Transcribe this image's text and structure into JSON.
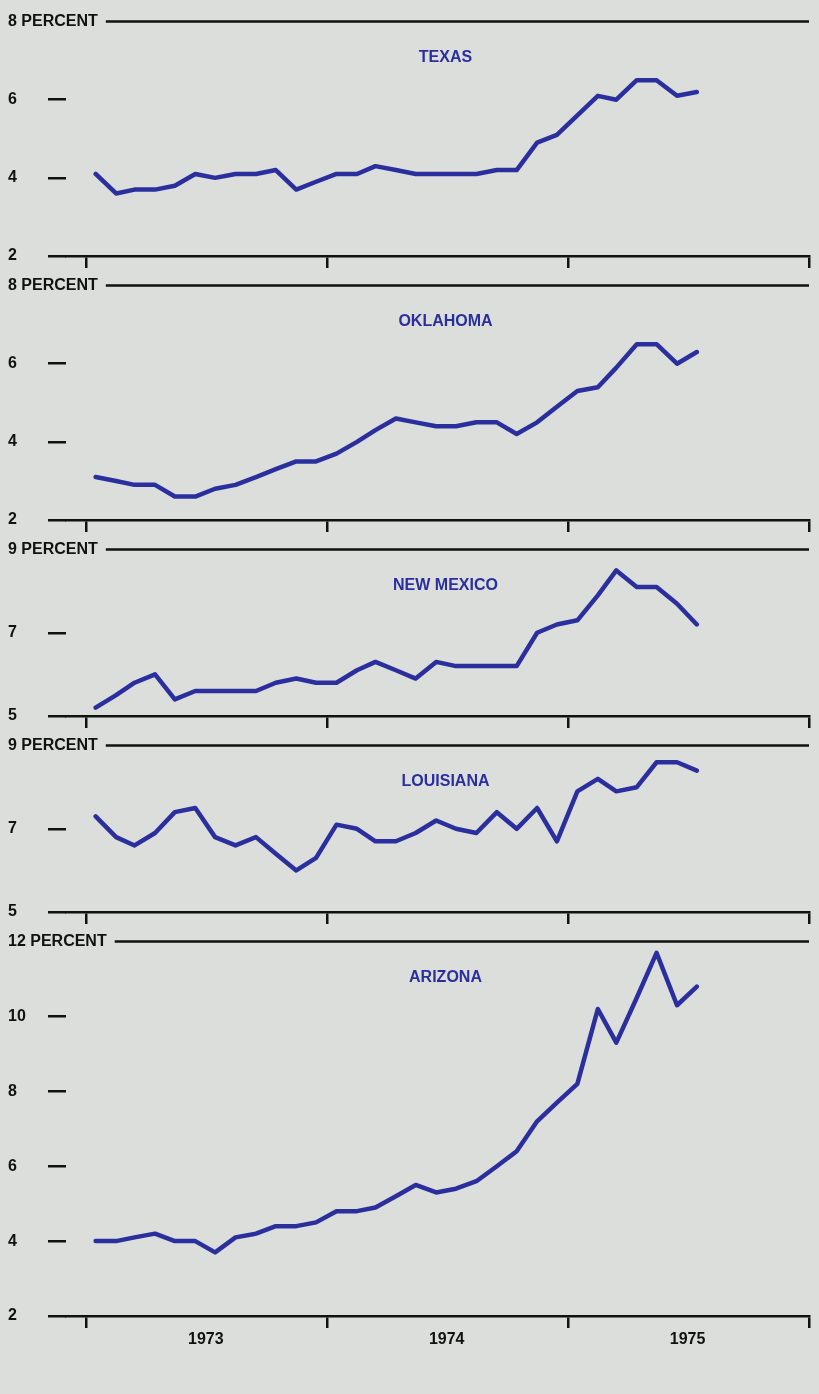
{
  "chart_data": [
    {
      "type": "line",
      "title": "TEXAS",
      "marker": "none",
      "tick_labels": "y",
      "x": [
        "1973-01-15",
        "1973-02-15",
        "1973-03-15",
        "1973-04-15",
        "1973-05-15",
        "1973-06-15",
        "1973-07-15",
        "1973-08-15",
        "1973-09-15",
        "1973-10-15",
        "1973-11-15",
        "1973-12-15",
        "1974-01-15",
        "1974-02-15",
        "1974-03-15",
        "1974-04-15",
        "1974-05-15",
        "1974-06-15",
        "1974-07-15",
        "1974-08-15",
        "1974-09-15",
        "1974-10-15",
        "1974-11-15",
        "1974-12-15",
        "1975-01-15",
        "1975-02-15",
        "1975-03-15",
        "1975-04-15",
        "1975-05-15",
        "1975-06-15",
        "1975-07-15"
      ],
      "series": [
        {
          "color": "#2b2f9e",
          "values": [
            4.1,
            3.6,
            3.7,
            3.7,
            3.8,
            4.1,
            4.0,
            4.1,
            4.1,
            4.2,
            3.7,
            3.9,
            4.1,
            4.1,
            4.3,
            4.2,
            4.1,
            4.1,
            4.1,
            4.1,
            4.2,
            4.2,
            4.9,
            5.1,
            5.6,
            6.1,
            6.0,
            6.5,
            6.5,
            6.1,
            6.2
          ]
        }
      ],
      "xlim": [
        "1972-12",
        "1976-01"
      ],
      "xticks": [
        {
          "value": "1973",
          "label": null
        },
        {
          "value": "1974",
          "label": null
        },
        {
          "value": "1975",
          "label": null
        },
        {
          "value": "1976",
          "label": null
        }
      ],
      "ylim": [
        2,
        8
      ],
      "yticks": [
        2,
        4,
        6,
        {
          "value": 8,
          "label": "8 PERCENT"
        }
      ]
    },
    {
      "type": "line",
      "title": "OKLAHOMA",
      "marker": "none",
      "tick_labels": "y",
      "x": [
        "1973-01-15",
        "1973-02-15",
        "1973-03-15",
        "1973-04-15",
        "1973-05-15",
        "1973-06-15",
        "1973-07-15",
        "1973-08-15",
        "1973-09-15",
        "1973-10-15",
        "1973-11-15",
        "1973-12-15",
        "1974-01-15",
        "1974-02-15",
        "1974-03-15",
        "1974-04-15",
        "1974-05-15",
        "1974-06-15",
        "1974-07-15",
        "1974-08-15",
        "1974-09-15",
        "1974-10-15",
        "1974-11-15",
        "1974-12-15",
        "1975-01-15",
        "1975-02-15",
        "1975-03-15",
        "1975-04-15",
        "1975-05-15",
        "1975-06-15",
        "1975-07-15"
      ],
      "series": [
        {
          "color": "#2b2f9e",
          "values": [
            3.1,
            3.0,
            2.9,
            2.9,
            2.6,
            2.6,
            2.8,
            2.9,
            3.1,
            3.3,
            3.5,
            3.5,
            3.7,
            4.0,
            4.3,
            4.6,
            4.5,
            4.4,
            4.4,
            4.5,
            4.5,
            4.2,
            4.5,
            4.9,
            5.3,
            5.4,
            5.9,
            6.5,
            6.5,
            6.0,
            6.3
          ]
        }
      ],
      "xlim": [
        "1972-12",
        "1976-01"
      ],
      "xticks": [
        {
          "value": "1973",
          "label": null
        },
        {
          "value": "1974",
          "label": null
        },
        {
          "value": "1975",
          "label": null
        },
        {
          "value": "1976",
          "label": null
        }
      ],
      "ylim": [
        2,
        8
      ],
      "yticks": [
        2,
        4,
        6,
        {
          "value": 8,
          "label": "8 PERCENT"
        }
      ]
    },
    {
      "type": "line",
      "title": "NEW MEXICO",
      "marker": "none",
      "tick_labels": "y",
      "x": [
        "1973-01-15",
        "1973-02-15",
        "1973-03-15",
        "1973-04-15",
        "1973-05-15",
        "1973-06-15",
        "1973-07-15",
        "1973-08-15",
        "1973-09-15",
        "1973-10-15",
        "1973-11-15",
        "1973-12-15",
        "1974-01-15",
        "1974-02-15",
        "1974-03-15",
        "1974-04-15",
        "1974-05-15",
        "1974-06-15",
        "1974-07-15",
        "1974-08-15",
        "1974-09-15",
        "1974-10-15",
        "1974-11-15",
        "1974-12-15",
        "1975-01-15",
        "1975-02-15",
        "1975-03-15",
        "1975-04-15",
        "1975-05-15",
        "1975-06-15",
        "1975-07-15"
      ],
      "series": [
        {
          "color": "#2b2f9e",
          "values": [
            5.2,
            5.5,
            5.8,
            6.0,
            5.4,
            5.6,
            5.6,
            5.6,
            5.6,
            5.8,
            5.9,
            5.8,
            5.8,
            6.1,
            6.3,
            6.1,
            5.9,
            6.3,
            6.2,
            6.2,
            6.2,
            6.2,
            7.0,
            7.2,
            7.3,
            7.9,
            8.5,
            8.1,
            8.1,
            7.7,
            7.2
          ]
        }
      ],
      "xlim": [
        "1972-12",
        "1976-01"
      ],
      "xticks": [
        {
          "value": "1973",
          "label": null
        },
        {
          "value": "1974",
          "label": null
        },
        {
          "value": "1975",
          "label": null
        },
        {
          "value": "1976",
          "label": null
        }
      ],
      "ylim": [
        5,
        9
      ],
      "yticks": [
        5,
        7,
        {
          "value": 9,
          "label": "9 PERCENT"
        }
      ]
    },
    {
      "type": "line",
      "title": "LOUISIANA",
      "marker": "none",
      "tick_labels": "y",
      "x": [
        "1973-01-15",
        "1973-02-15",
        "1973-03-15",
        "1973-04-15",
        "1973-05-15",
        "1973-06-15",
        "1973-07-15",
        "1973-08-15",
        "1973-09-15",
        "1973-10-15",
        "1973-11-15",
        "1973-12-15",
        "1974-01-15",
        "1974-02-15",
        "1974-03-15",
        "1974-04-15",
        "1974-05-15",
        "1974-06-15",
        "1974-07-15",
        "1974-08-15",
        "1974-09-15",
        "1974-10-15",
        "1974-11-15",
        "1974-12-15",
        "1975-01-15",
        "1975-02-15",
        "1975-03-15",
        "1975-04-15",
        "1975-05-15",
        "1975-06-15",
        "1975-07-15"
      ],
      "series": [
        {
          "color": "#2b2f9e",
          "values": [
            7.3,
            6.8,
            6.6,
            6.9,
            7.4,
            7.5,
            6.8,
            6.6,
            6.8,
            6.4,
            6.0,
            6.3,
            7.1,
            7.0,
            6.7,
            6.7,
            6.9,
            7.2,
            7.0,
            6.9,
            7.4,
            7.0,
            7.5,
            6.7,
            7.9,
            8.2,
            7.9,
            8.0,
            8.6,
            8.6,
            8.4
          ]
        }
      ],
      "xlim": [
        "1972-12",
        "1976-01"
      ],
      "xticks": [
        {
          "value": "1973",
          "label": null
        },
        {
          "value": "1974",
          "label": null
        },
        {
          "value": "1975",
          "label": null
        },
        {
          "value": "1976",
          "label": null
        }
      ],
      "ylim": [
        5,
        9
      ],
      "yticks": [
        5,
        7,
        {
          "value": 9,
          "label": "9 PERCENT"
        }
      ]
    },
    {
      "type": "line",
      "title": "ARIZONA",
      "marker": "none",
      "x": [
        "1973-01-15",
        "1973-02-15",
        "1973-03-15",
        "1973-04-15",
        "1973-05-15",
        "1973-06-15",
        "1973-07-15",
        "1973-08-15",
        "1973-09-15",
        "1973-10-15",
        "1973-11-15",
        "1973-12-15",
        "1974-01-15",
        "1974-02-15",
        "1974-03-15",
        "1974-04-15",
        "1974-05-15",
        "1974-06-15",
        "1974-07-15",
        "1974-08-15",
        "1974-09-15",
        "1974-10-15",
        "1974-11-15",
        "1974-12-15",
        "1975-01-15",
        "1975-02-15",
        "1975-03-15",
        "1975-04-15",
        "1975-05-15",
        "1975-06-15",
        "1975-07-15"
      ],
      "series": [
        {
          "color": "#2b2f9e",
          "values": [
            4.0,
            4.0,
            4.1,
            4.2,
            4.0,
            4.0,
            3.7,
            4.1,
            4.2,
            4.4,
            4.4,
            4.5,
            4.8,
            4.8,
            4.9,
            5.2,
            5.5,
            5.3,
            5.4,
            5.6,
            6.0,
            6.4,
            7.2,
            7.7,
            8.2,
            10.2,
            9.3,
            10.5,
            11.7,
            10.3,
            10.8
          ]
        }
      ],
      "xlim": [
        "1972-12",
        "1976-01"
      ],
      "xticks": [
        {
          "value": "1973",
          "label": null
        },
        {
          "value": "1973-07",
          "label": "1973"
        },
        {
          "value": "1974",
          "label": null
        },
        {
          "value": "1974-07",
          "label": "1974"
        },
        {
          "value": "1975",
          "label": null
        },
        {
          "value": "1975-07",
          "label": "1975"
        },
        {
          "value": "1976",
          "label": null
        }
      ],
      "ylim": [
        2,
        12
      ],
      "yticks": [
        2,
        4,
        6,
        8,
        10,
        {
          "value": 12,
          "label": "12 PERCENT"
        }
      ]
    }
  ]
}
